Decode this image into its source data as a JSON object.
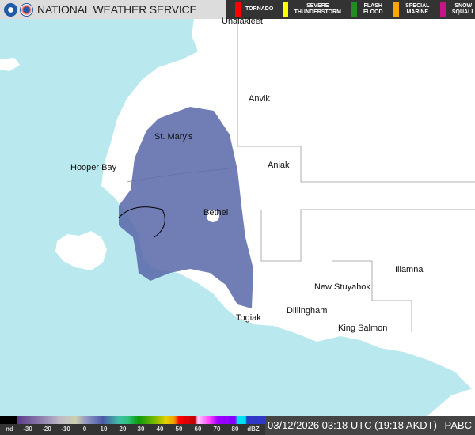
{
  "header": {
    "title": "NATIONAL WEATHER SERVICE",
    "warnings": [
      {
        "label": "TORNADO",
        "color": "#ff0000"
      },
      {
        "label": "SEVERE THUNDERSTORM",
        "color": "#ffff00"
      },
      {
        "label": "FLASH FLOOD",
        "color": "#228b22"
      },
      {
        "label": "SPECIAL MARINE",
        "color": "#ffa500"
      },
      {
        "label": "SNOW SQUALL",
        "color": "#c71585"
      }
    ]
  },
  "map": {
    "towns": [
      "Unalakleet",
      "Anvik",
      "St. Mary's",
      "Hooper Bay",
      "Aniak",
      "Bethel",
      "Iliamna",
      "New Stuyahok",
      "Dillingham",
      "Togiak",
      "King Salmon"
    ],
    "colors": {
      "water": "#b9e8ee",
      "land": "#ffffff",
      "radar": "#5866a8"
    }
  },
  "scale": {
    "labels": [
      "nd",
      "-30",
      "-20",
      "-10",
      "0",
      "10",
      "20",
      "30",
      "40",
      "50",
      "60",
      "70",
      "80",
      "dBZ"
    ]
  },
  "timestamp": "03/12/2026 03:18 UTC (19:18 AKDT)",
  "station": "PABC"
}
